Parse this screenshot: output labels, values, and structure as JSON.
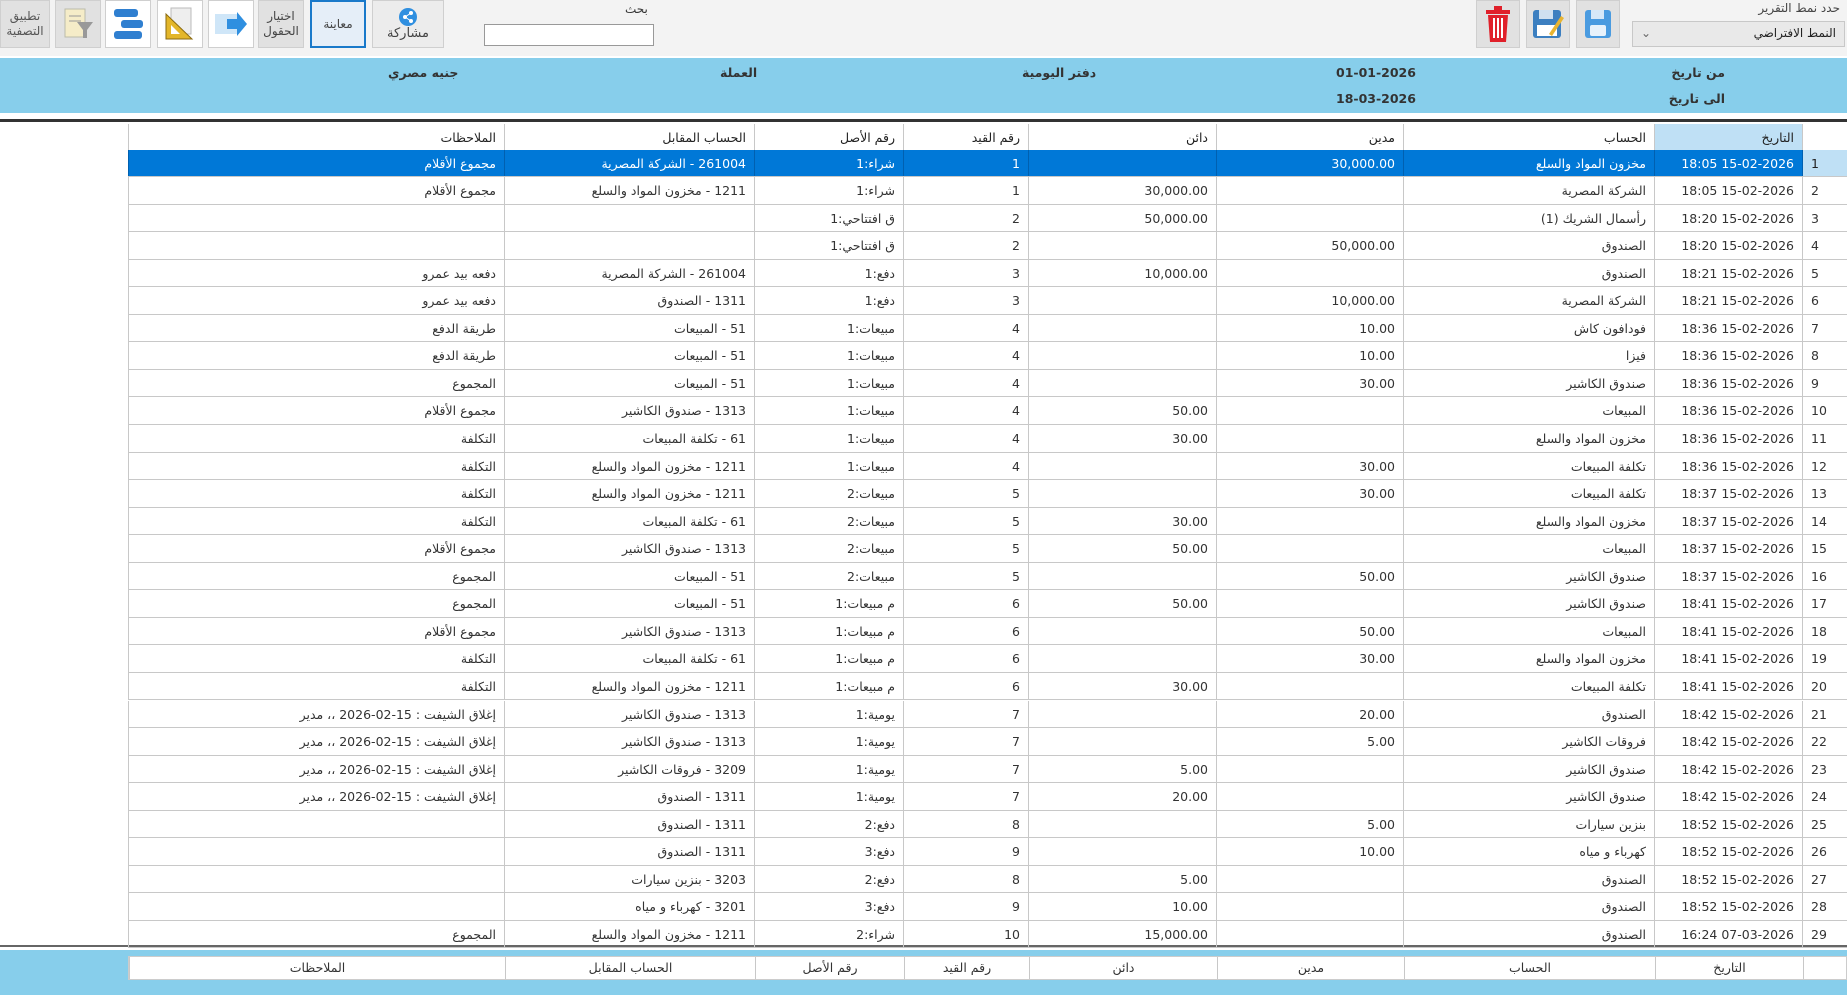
{
  "toolbar": {
    "apply_filter": "تطبيق التصفية",
    "choose_fields": "اختيار الحقول",
    "preview": "معاينة",
    "share": "مشاركة",
    "search_label": "بحث",
    "search_value": "",
    "report_style_label": "حدد نمط التقرير",
    "report_style_value": "النمط الافتراضي"
  },
  "header": {
    "from_label": "من تاريخ",
    "from_value": "01-01-2026",
    "to_label": "الى تاريخ",
    "to_value": "18-03-2026",
    "report_title": "دفتر اليومية",
    "currency_label": "العملة",
    "currency_value": "جنيه مصري"
  },
  "columns": {
    "date": "التاريخ",
    "account": "الحساب",
    "debit": "مدين",
    "credit": "دائن",
    "entry": "رقم القيد",
    "origin": "رقم الأصل",
    "counter": "الحساب المقابل",
    "remarks": "الملاحظات"
  },
  "selected_row": 1,
  "rows": [
    [
      "1",
      "15-02-2026 18:05",
      "مخزون المواد والسلع",
      "30,000.00",
      "",
      "1",
      "شراء:1",
      "261004 - الشركة المصرية",
      "مجموع الأقلام"
    ],
    [
      "2",
      "15-02-2026 18:05",
      "الشركة المصرية",
      "",
      "30,000.00",
      "1",
      "شراء:1",
      "1211 - مخزون المواد والسلع",
      "مجموع الأقلام"
    ],
    [
      "3",
      "15-02-2026 18:20",
      "رأسمال الشريك (1)",
      "",
      "50,000.00",
      "2",
      "ق افتتاحي:1",
      "",
      ""
    ],
    [
      "4",
      "15-02-2026 18:20",
      "الصندوق",
      "50,000.00",
      "",
      "2",
      "ق افتتاحي:1",
      "",
      ""
    ],
    [
      "5",
      "15-02-2026 18:21",
      "الصندوق",
      "",
      "10,000.00",
      "3",
      "دفع:1",
      "261004 - الشركة المصرية",
      "دفعه بيد عمرو"
    ],
    [
      "6",
      "15-02-2026 18:21",
      "الشركة المصرية",
      "10,000.00",
      "",
      "3",
      "دفع:1",
      "1311 - الصندوق",
      "دفعه بيد عمرو"
    ],
    [
      "7",
      "15-02-2026 18:36",
      "فودافون كاش",
      "10.00",
      "",
      "4",
      "مبيعات:1",
      "51 - المبيعات",
      "طريقة الدفع"
    ],
    [
      "8",
      "15-02-2026 18:36",
      "فيزا",
      "10.00",
      "",
      "4",
      "مبيعات:1",
      "51 - المبيعات",
      "طريقة الدفع"
    ],
    [
      "9",
      "15-02-2026 18:36",
      "صندوق الكاشير",
      "30.00",
      "",
      "4",
      "مبيعات:1",
      "51 - المبيعات",
      "المجموع"
    ],
    [
      "10",
      "15-02-2026 18:36",
      "المبيعات",
      "",
      "50.00",
      "4",
      "مبيعات:1",
      "1313 - صندوق الكاشير",
      "مجموع الأقلام"
    ],
    [
      "11",
      "15-02-2026 18:36",
      "مخزون المواد والسلع",
      "",
      "30.00",
      "4",
      "مبيعات:1",
      "61 - تكلفة المبيعات",
      "التكلفة"
    ],
    [
      "12",
      "15-02-2026 18:36",
      "تكلفة المبيعات",
      "30.00",
      "",
      "4",
      "مبيعات:1",
      "1211 - مخزون المواد والسلع",
      "التكلفة"
    ],
    [
      "13",
      "15-02-2026 18:37",
      "تكلفة المبيعات",
      "30.00",
      "",
      "5",
      "مبيعات:2",
      "1211 - مخزون المواد والسلع",
      "التكلفة"
    ],
    [
      "14",
      "15-02-2026 18:37",
      "مخزون المواد والسلع",
      "",
      "30.00",
      "5",
      "مبيعات:2",
      "61 - تكلفة المبيعات",
      "التكلفة"
    ],
    [
      "15",
      "15-02-2026 18:37",
      "المبيعات",
      "",
      "50.00",
      "5",
      "مبيعات:2",
      "1313 - صندوق الكاشير",
      "مجموع الأقلام"
    ],
    [
      "16",
      "15-02-2026 18:37",
      "صندوق الكاشير",
      "50.00",
      "",
      "5",
      "مبيعات:2",
      "51 - المبيعات",
      "المجموع"
    ],
    [
      "17",
      "15-02-2026 18:41",
      "صندوق الكاشير",
      "",
      "50.00",
      "6",
      "م مبيعات:1",
      "51 - المبيعات",
      "المجموع"
    ],
    [
      "18",
      "15-02-2026 18:41",
      "المبيعات",
      "50.00",
      "",
      "6",
      "م مبيعات:1",
      "1313 - صندوق الكاشير",
      "مجموع الأقلام"
    ],
    [
      "19",
      "15-02-2026 18:41",
      "مخزون المواد والسلع",
      "30.00",
      "",
      "6",
      "م مبيعات:1",
      "61 - تكلفة المبيعات",
      "التكلفة"
    ],
    [
      "20",
      "15-02-2026 18:41",
      "تكلفة المبيعات",
      "",
      "30.00",
      "6",
      "م مبيعات:1",
      "1211 - مخزون المواد والسلع",
      "التكلفة"
    ],
    [
      "21",
      "15-02-2026 18:42",
      "الصندوق",
      "20.00",
      "",
      "7",
      "يومية:1",
      "1313 - صندوق الكاشير",
      "إغلاق الشيفت : 15-02-2026 ،، مدير"
    ],
    [
      "22",
      "15-02-2026 18:42",
      "فروقات الكاشير",
      "5.00",
      "",
      "7",
      "يومية:1",
      "1313 - صندوق الكاشير",
      "إغلاق الشيفت : 15-02-2026 ،، مدير"
    ],
    [
      "23",
      "15-02-2026 18:42",
      "صندوق الكاشير",
      "",
      "5.00",
      "7",
      "يومية:1",
      "3209 - فروقات الكاشير",
      "إغلاق الشيفت : 15-02-2026 ،، مدير"
    ],
    [
      "24",
      "15-02-2026 18:42",
      "صندوق الكاشير",
      "",
      "20.00",
      "7",
      "يومية:1",
      "1311 - الصندوق",
      "إغلاق الشيفت : 15-02-2026 ،، مدير"
    ],
    [
      "25",
      "15-02-2026 18:52",
      "بنزين سيارات",
      "5.00",
      "",
      "8",
      "دفع:2",
      "1311 - الصندوق",
      ""
    ],
    [
      "26",
      "15-02-2026 18:52",
      "كهرباء و مياه",
      "10.00",
      "",
      "9",
      "دفع:3",
      "1311 - الصندوق",
      ""
    ],
    [
      "27",
      "15-02-2026 18:52",
      "الصندوق",
      "",
      "5.00",
      "8",
      "دفع:2",
      "3203 - بنزين سيارات",
      ""
    ],
    [
      "28",
      "15-02-2026 18:52",
      "الصندوق",
      "",
      "10.00",
      "9",
      "دفع:3",
      "3201 - كهرباء و مياه",
      ""
    ],
    [
      "29",
      "07-03-2026 16:24",
      "الصندوق",
      "",
      "15,000.00",
      "10",
      "شراء:2",
      "1211 - مخزون المواد والسلع",
      "المجموع"
    ]
  ]
}
